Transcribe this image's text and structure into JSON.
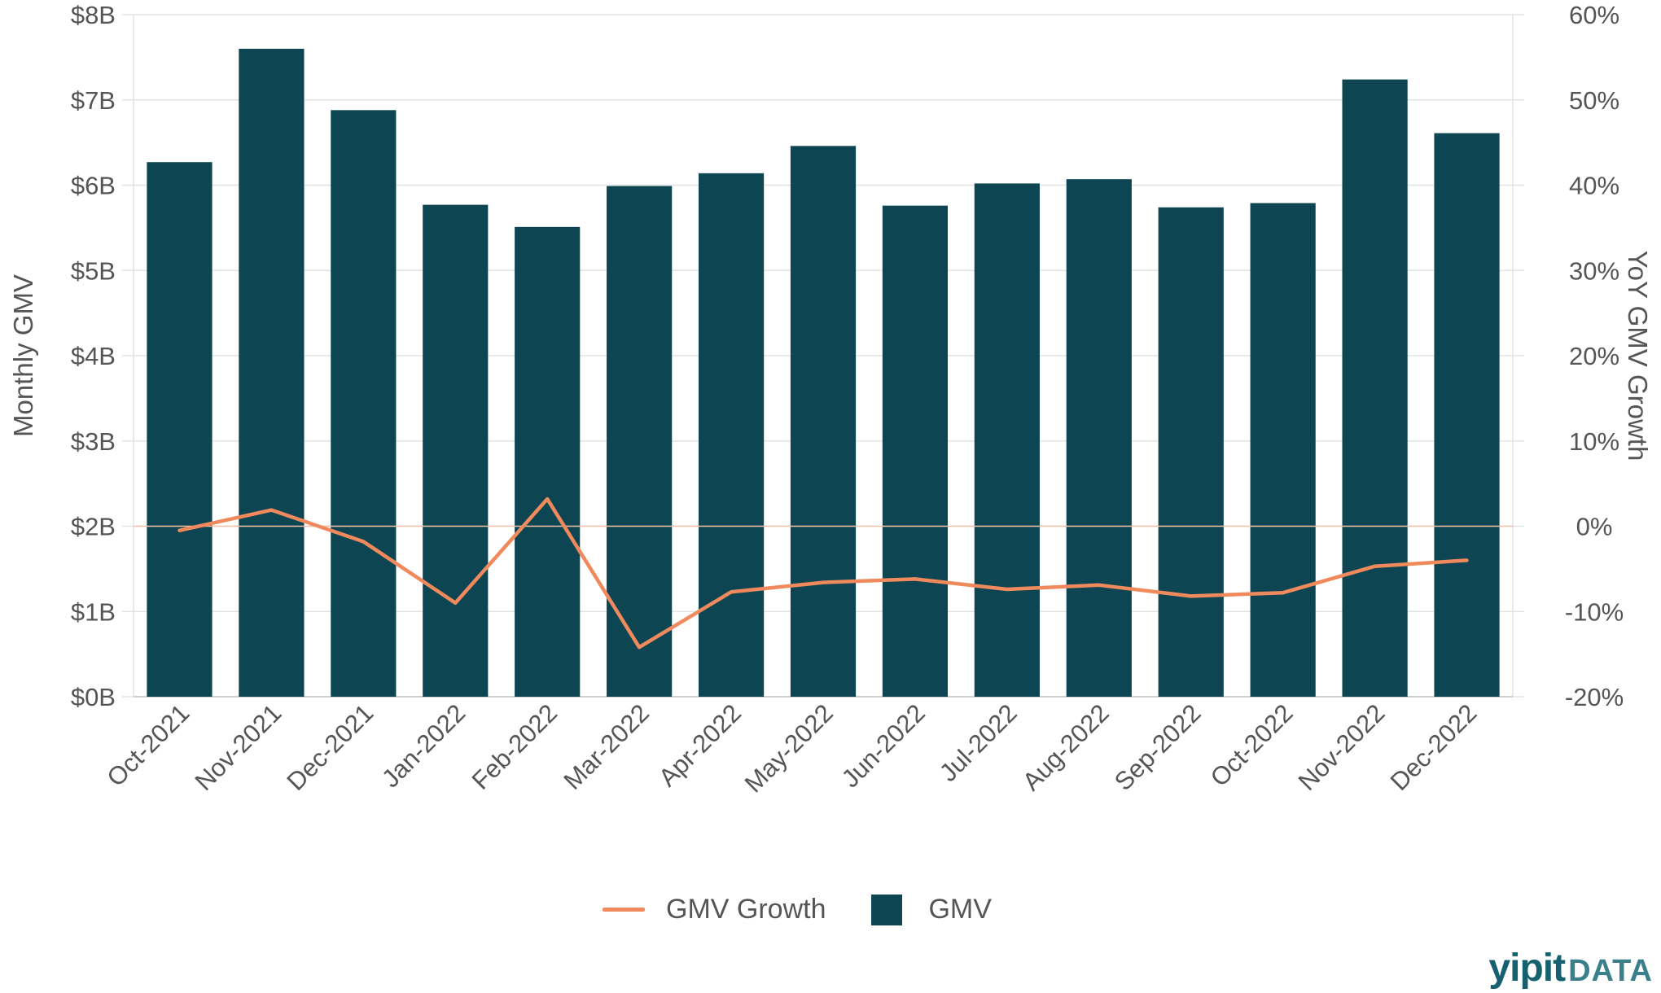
{
  "chart_data": {
    "type": "bar",
    "categories": [
      "Oct-2021",
      "Nov-2021",
      "Dec-2021",
      "Jan-2022",
      "Feb-2022",
      "Mar-2022",
      "Apr-2022",
      "May-2022",
      "Jun-2022",
      "Jul-2022",
      "Aug-2022",
      "Sep-2022",
      "Oct-2022",
      "Nov-2022",
      "Dec-2022"
    ],
    "series": [
      {
        "name": "GMV",
        "type": "bar",
        "axis": "left",
        "values": [
          6.27,
          7.6,
          6.88,
          5.77,
          5.51,
          5.99,
          6.14,
          6.46,
          5.76,
          6.02,
          6.07,
          5.74,
          5.79,
          7.24,
          6.61
        ]
      },
      {
        "name": "GMV Growth",
        "type": "line",
        "axis": "right",
        "values": [
          -0.5,
          1.9,
          -1.8,
          -9.0,
          3.2,
          -14.2,
          -7.7,
          -6.6,
          -6.2,
          -7.4,
          -6.9,
          -8.2,
          -7.8,
          -4.7,
          -4.0
        ]
      }
    ],
    "y_left": {
      "label": "Monthly GMV",
      "range": [
        0,
        8
      ],
      "ticks": [
        "$0B",
        "$1B",
        "$2B",
        "$3B",
        "$4B",
        "$5B",
        "$6B",
        "$7B",
        "$8B"
      ]
    },
    "y_right": {
      "label": "YoY GMV Growth",
      "range": [
        -20,
        60
      ],
      "ticks": [
        "-20%",
        "-10%",
        "0%",
        "10%",
        "20%",
        "30%",
        "40%",
        "50%",
        "60%"
      ]
    },
    "grid": true,
    "legend_position": "bottom",
    "colors": {
      "bar": "#0e4553",
      "line": "#f08a5d",
      "zero_line": "#f5c2a6",
      "grid": "#e3e3e3"
    }
  },
  "legend": {
    "line_label": "GMV Growth",
    "bar_label": "GMV"
  },
  "logo": {
    "main": "yipit",
    "sub": "DATA"
  }
}
